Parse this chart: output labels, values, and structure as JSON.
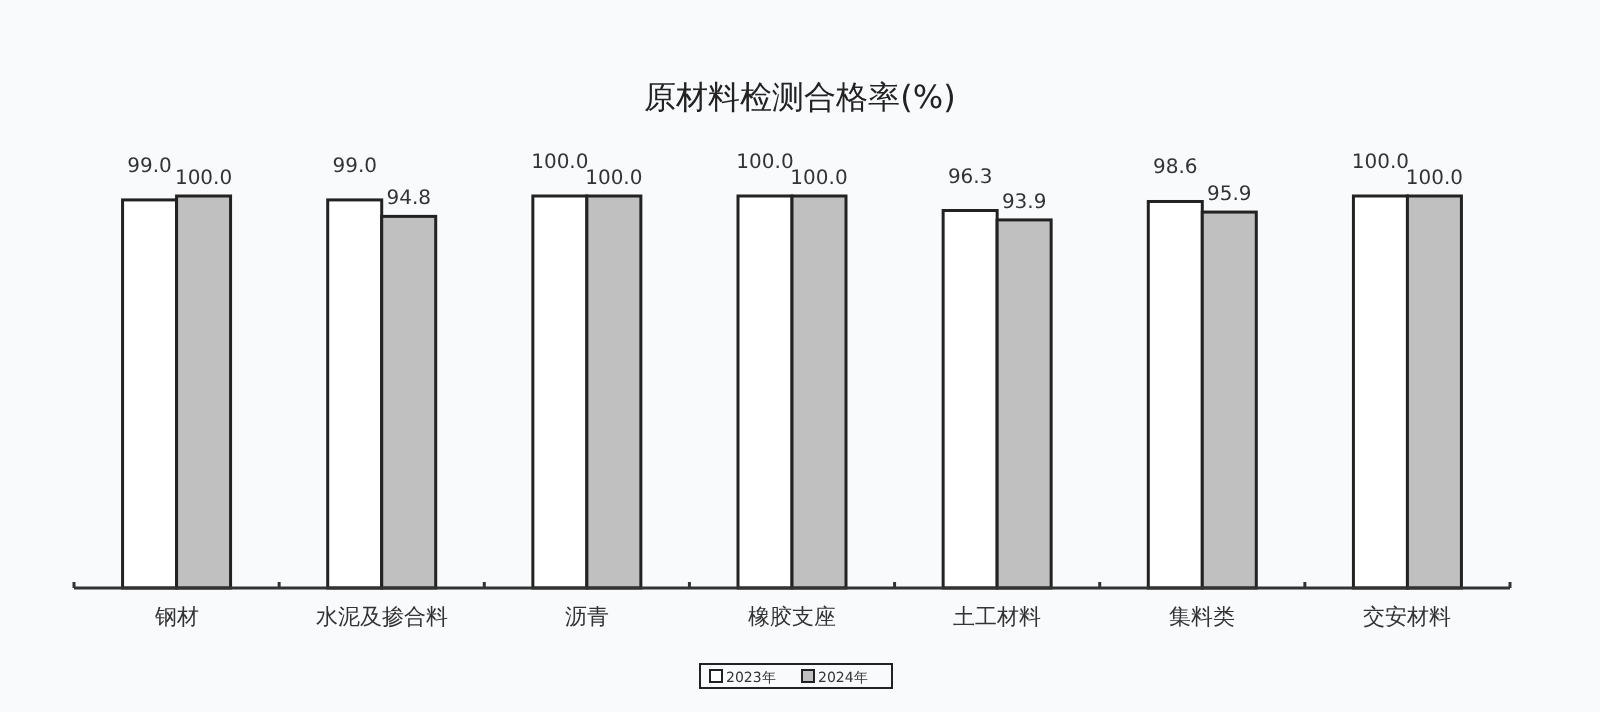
{
  "chart_data": {
    "type": "bar",
    "title": "原材料检测合格率(%)",
    "categories": [
      "钢材",
      "水泥及掺合料",
      "沥青",
      "橡胶支座",
      "土工材料",
      "集料类",
      "交安材料"
    ],
    "series": [
      {
        "name": "2023年",
        "color": "#ffffff",
        "values": [
          99.0,
          99.0,
          100.0,
          100.0,
          96.3,
          98.6,
          100.0
        ],
        "value_labels": [
          "99.0",
          "99.0",
          "100.0",
          "100.0",
          "96.3",
          "98.6",
          "100.0"
        ]
      },
      {
        "name": "2024年",
        "color": "#c0c0c0",
        "values": [
          100.0,
          94.8,
          100.0,
          100.0,
          93.9,
          95.9,
          100.0
        ],
        "value_labels": [
          "100.0",
          "94.8",
          "100.0",
          "100.0",
          "93.9",
          "95.9",
          "100.0"
        ]
      }
    ],
    "relative": false,
    "ylim": [
      0,
      100
    ],
    "tick_labels": "x",
    "legend": "bottom"
  }
}
